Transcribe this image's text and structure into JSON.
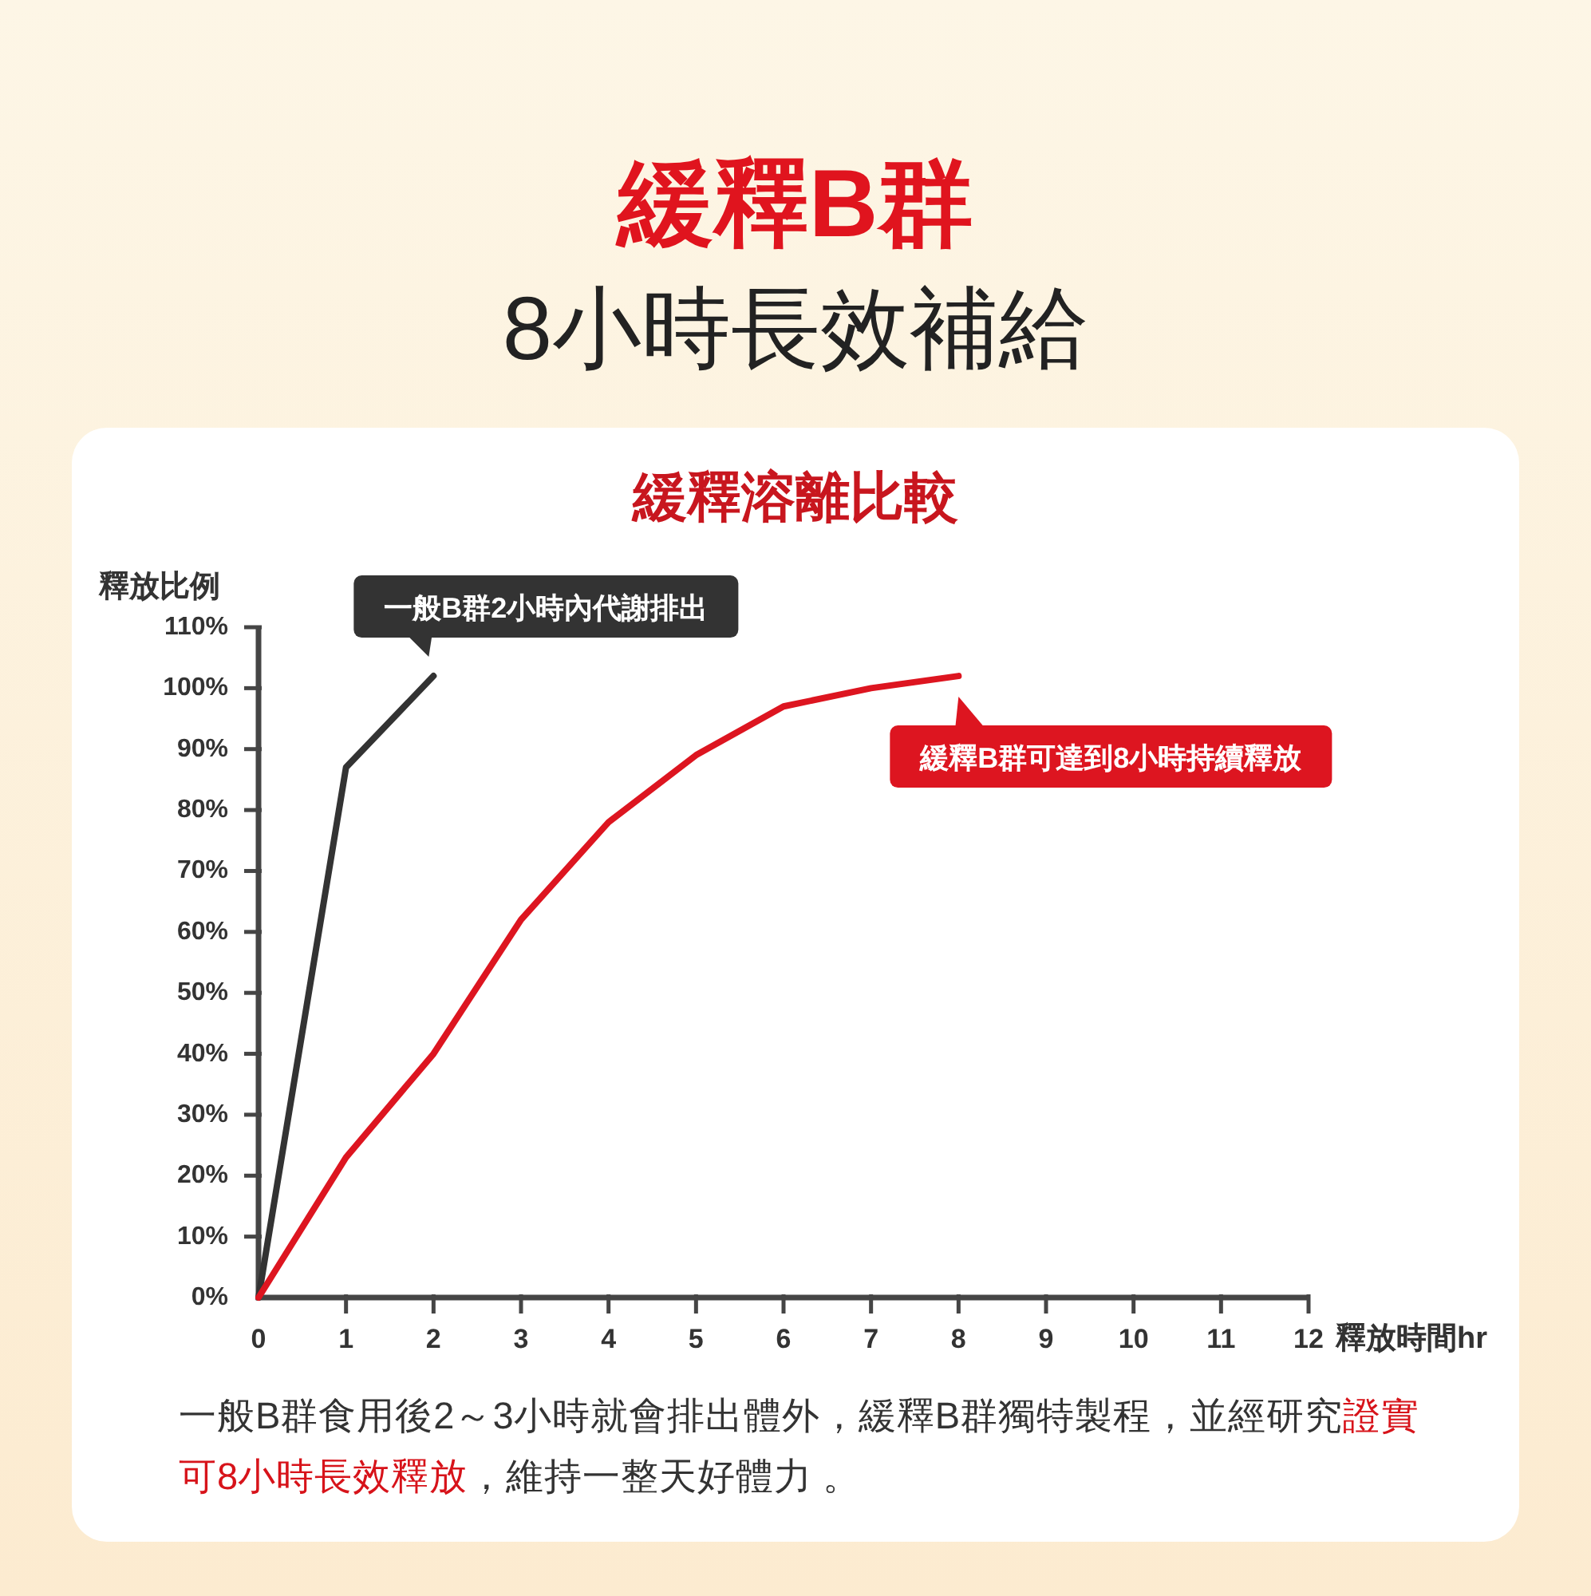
{
  "chart_data": {
    "type": "line",
    "title": "緩釋B群",
    "subtitle": "8小時長效補給",
    "ylabel": "釋放比例",
    "xlabel": "釋放時間hr",
    "xlim": [
      0,
      12
    ],
    "ylim": [
      0,
      110
    ],
    "xticks": [
      0,
      1,
      2,
      3,
      4,
      5,
      6,
      7,
      8,
      9,
      10,
      11,
      12
    ],
    "yticks": [
      {
        "value": 0,
        "label": "0%"
      },
      {
        "value": 10,
        "label": "10%"
      },
      {
        "value": 20,
        "label": "20%"
      },
      {
        "value": 30,
        "label": "30%"
      },
      {
        "value": 40,
        "label": "40%"
      },
      {
        "value": 50,
        "label": "50%"
      },
      {
        "value": 60,
        "label": "60%"
      },
      {
        "value": 70,
        "label": "70%"
      },
      {
        "value": 80,
        "label": "80%"
      },
      {
        "value": 90,
        "label": "90%"
      },
      {
        "value": 100,
        "label": "100%"
      },
      {
        "value": 110,
        "label": "110%"
      }
    ],
    "series": [
      {
        "color": "#333333",
        "x": [
          0,
          1,
          2
        ],
        "values": [
          0,
          87,
          102
        ]
      },
      {
        "color": "#dd1520",
        "x": [
          0,
          1,
          2,
          3,
          4,
          5,
          6,
          7,
          8
        ],
        "values": [
          0,
          23,
          40,
          62,
          78,
          89,
          97,
          100,
          102
        ]
      }
    ],
    "annotations": [
      "緩釋溶離比較",
      {
        "text": "一般B群2小時內代謝排出",
        "x": 2,
        "y": 102
      },
      {
        "text": "緩釋B群可達到8小時持續釋放",
        "x": 8,
        "y": 102
      },
      "一般B群食用後2～3小時就會排出體外，緩釋B群獨特製程，並經研究",
      "證實",
      "可8小時長效釋放",
      "，維持一整天好體力 。"
    ]
  }
}
